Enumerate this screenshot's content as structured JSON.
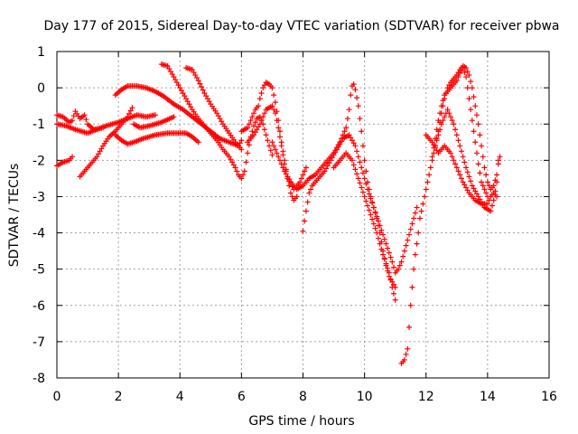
{
  "chart_data": {
    "type": "scatter",
    "title": "Day 177 of 2015, Sidereal Day-to-day VTEC variation (SDTVAR) for receiver pbwa",
    "xlabel": "GPS time / hours",
    "ylabel": "SDTVAR / TECUs",
    "xlim": [
      0,
      16
    ],
    "ylim": [
      -8,
      1
    ],
    "xticks": [
      "0",
      "2",
      "4",
      "6",
      "8",
      "10",
      "12",
      "14",
      "16"
    ],
    "yticks": [
      "1",
      "0",
      "-1",
      "-2",
      "-3",
      "-4",
      "-5",
      "-6",
      "-7",
      "-8"
    ],
    "grid": true,
    "marker": "+",
    "color": "#ff0000",
    "tracks": [
      [
        [
          0.0,
          -1.0
        ],
        [
          0.3,
          -1.05
        ],
        [
          0.6,
          -1.15
        ],
        [
          1.0,
          -1.25
        ],
        [
          1.3,
          -1.15
        ],
        [
          1.6,
          -1.05
        ],
        [
          2.0,
          -0.95
        ],
        [
          2.3,
          -0.85
        ],
        [
          2.6,
          -0.75
        ],
        [
          2.9,
          -0.8
        ],
        [
          3.2,
          -0.75
        ]
      ],
      [
        [
          0.0,
          -0.75
        ],
        [
          0.2,
          -0.8
        ],
        [
          0.4,
          -0.95
        ],
        [
          0.5,
          -0.9
        ],
        [
          0.6,
          -0.65
        ],
        [
          0.75,
          -0.85
        ],
        [
          0.9,
          -0.75
        ],
        [
          1.0,
          -1.0
        ],
        [
          1.2,
          -1.15
        ],
        [
          1.5,
          -1.1
        ]
      ],
      [
        [
          0.0,
          -2.15
        ],
        [
          0.2,
          -2.05
        ],
        [
          0.4,
          -2.0
        ],
        [
          0.5,
          -1.9
        ]
      ],
      [
        [
          0.75,
          -2.45
        ],
        [
          0.9,
          -2.3
        ],
        [
          1.1,
          -2.1
        ],
        [
          1.3,
          -1.9
        ],
        [
          1.5,
          -1.6
        ],
        [
          1.7,
          -1.35
        ],
        [
          1.9,
          -1.2
        ],
        [
          2.1,
          -1.0
        ],
        [
          2.3,
          -0.8
        ],
        [
          2.45,
          -0.55
        ],
        [
          2.5,
          -1.0
        ],
        [
          2.7,
          -1.1
        ],
        [
          3.0,
          -1.05
        ],
        [
          3.4,
          -0.95
        ],
        [
          3.8,
          -0.8
        ]
      ],
      [
        [
          1.9,
          -1.3
        ],
        [
          2.1,
          -1.45
        ],
        [
          2.3,
          -1.55
        ],
        [
          2.5,
          -1.5
        ],
        [
          2.8,
          -1.4
        ],
        [
          3.2,
          -1.3
        ],
        [
          3.6,
          -1.25
        ],
        [
          4.0,
          -1.25
        ],
        [
          4.2,
          -1.25
        ],
        [
          4.4,
          -1.35
        ],
        [
          4.6,
          -1.5
        ]
      ],
      [
        [
          1.9,
          -0.2
        ],
        [
          2.1,
          -0.05
        ],
        [
          2.3,
          0.05
        ],
        [
          2.6,
          0.05
        ],
        [
          2.9,
          0.0
        ],
        [
          3.2,
          -0.1
        ],
        [
          3.5,
          -0.25
        ],
        [
          3.8,
          -0.45
        ],
        [
          4.1,
          -0.6
        ],
        [
          4.4,
          -0.8
        ],
        [
          4.7,
          -1.0
        ],
        [
          5.0,
          -1.2
        ],
        [
          5.3,
          -1.4
        ],
        [
          5.6,
          -1.5
        ],
        [
          5.9,
          -1.6
        ],
        [
          6.0,
          -1.45
        ]
      ],
      [
        [
          3.4,
          0.65
        ],
        [
          3.6,
          0.6
        ],
        [
          3.8,
          0.3
        ],
        [
          4.0,
          0.0
        ],
        [
          4.2,
          -0.3
        ],
        [
          4.4,
          -0.6
        ],
        [
          4.6,
          -0.85
        ],
        [
          4.8,
          -1.05
        ],
        [
          5.0,
          -1.25
        ],
        [
          5.2,
          -1.45
        ],
        [
          5.4,
          -1.7
        ],
        [
          5.6,
          -1.9
        ],
        [
          5.8,
          -2.2
        ],
        [
          5.9,
          -2.4
        ],
        [
          6.0,
          -2.5
        ],
        [
          6.1,
          -2.3
        ],
        [
          6.2,
          -1.8
        ],
        [
          6.3,
          -1.35
        ],
        [
          6.4,
          -1.05
        ],
        [
          6.5,
          -0.85
        ],
        [
          6.6,
          -0.8
        ],
        [
          6.7,
          -1.0
        ],
        [
          6.8,
          -1.3
        ],
        [
          6.9,
          -1.6
        ],
        [
          7.0,
          -1.85
        ]
      ],
      [
        [
          4.2,
          0.55
        ],
        [
          4.4,
          0.5
        ],
        [
          4.6,
          0.2
        ],
        [
          4.8,
          -0.15
        ],
        [
          5.0,
          -0.45
        ],
        [
          5.2,
          -0.7
        ],
        [
          5.4,
          -1.0
        ],
        [
          5.6,
          -1.25
        ],
        [
          5.8,
          -1.5
        ],
        [
          6.0,
          -1.7
        ]
      ],
      [
        [
          6.0,
          -1.2
        ],
        [
          6.2,
          -1.1
        ],
        [
          6.35,
          -0.8
        ],
        [
          6.45,
          -0.6
        ],
        [
          6.55,
          -0.5
        ],
        [
          6.6,
          -0.3
        ],
        [
          6.7,
          0.0
        ],
        [
          6.8,
          0.15
        ],
        [
          6.9,
          0.1
        ],
        [
          7.0,
          0.0
        ],
        [
          7.1,
          -0.4
        ],
        [
          7.2,
          -0.9
        ],
        [
          7.3,
          -1.5
        ],
        [
          7.4,
          -2.0
        ],
        [
          7.5,
          -2.5
        ],
        [
          7.6,
          -2.9
        ],
        [
          7.7,
          -3.1
        ],
        [
          7.8,
          -3.0
        ]
      ],
      [
        [
          6.2,
          -1.5
        ],
        [
          6.4,
          -1.3
        ],
        [
          6.6,
          -1.0
        ],
        [
          6.8,
          -0.6
        ],
        [
          7.0,
          -0.5
        ],
        [
          7.1,
          -0.7
        ],
        [
          7.2,
          -1.1
        ],
        [
          7.3,
          -1.6
        ],
        [
          7.4,
          -2.1
        ],
        [
          7.5,
          -2.5
        ],
        [
          7.7,
          -2.8
        ],
        [
          7.9,
          -2.6
        ],
        [
          8.0,
          -2.4
        ],
        [
          8.1,
          -2.2
        ]
      ],
      [
        [
          7.0,
          -1.5
        ],
        [
          7.2,
          -1.9
        ],
        [
          7.4,
          -2.3
        ],
        [
          7.6,
          -2.6
        ],
        [
          7.8,
          -2.8
        ],
        [
          8.0,
          -2.7
        ],
        [
          8.2,
          -2.5
        ],
        [
          8.4,
          -2.4
        ],
        [
          8.6,
          -2.2
        ],
        [
          8.8,
          -2.0
        ],
        [
          9.0,
          -1.8
        ],
        [
          9.2,
          -1.5
        ],
        [
          9.4,
          -1.1
        ],
        [
          9.5,
          -0.6
        ],
        [
          9.55,
          -0.2
        ],
        [
          9.6,
          0.05
        ],
        [
          9.65,
          0.1
        ],
        [
          9.7,
          -0.05
        ],
        [
          9.8,
          -0.5
        ],
        [
          9.9,
          -1.2
        ],
        [
          10.0,
          -2.0
        ],
        [
          10.1,
          -2.6
        ],
        [
          10.2,
          -3.0
        ],
        [
          10.3,
          -3.3
        ],
        [
          10.4,
          -3.6
        ],
        [
          10.5,
          -4.0
        ],
        [
          10.6,
          -4.5
        ],
        [
          10.7,
          -4.9
        ],
        [
          10.8,
          -5.2
        ],
        [
          10.9,
          -5.35
        ],
        [
          11.0,
          -5.5
        ]
      ],
      [
        [
          8.0,
          -3.95
        ],
        [
          8.1,
          -3.4
        ],
        [
          8.2,
          -2.9
        ],
        [
          8.3,
          -2.7
        ],
        [
          8.5,
          -2.5
        ],
        [
          8.7,
          -2.3
        ],
        [
          8.9,
          -2.0
        ],
        [
          9.1,
          -1.7
        ],
        [
          9.3,
          -1.4
        ],
        [
          9.5,
          -1.3
        ],
        [
          9.7,
          -1.6
        ],
        [
          9.9,
          -2.2
        ],
        [
          10.1,
          -2.8
        ],
        [
          10.3,
          -3.3
        ],
        [
          10.5,
          -3.8
        ],
        [
          10.7,
          -4.3
        ],
        [
          10.9,
          -4.8
        ],
        [
          11.0,
          -5.1
        ],
        [
          11.1,
          -5.0
        ],
        [
          11.2,
          -4.8
        ],
        [
          11.3,
          -4.5
        ],
        [
          11.4,
          -4.2
        ],
        [
          11.5,
          -3.9
        ],
        [
          11.6,
          -3.6
        ],
        [
          11.7,
          -3.3
        ]
      ],
      [
        [
          9.0,
          -2.2
        ],
        [
          9.2,
          -2.0
        ],
        [
          9.4,
          -1.8
        ],
        [
          9.6,
          -2.0
        ],
        [
          9.8,
          -2.5
        ],
        [
          10.0,
          -3.0
        ],
        [
          10.2,
          -3.5
        ],
        [
          10.4,
          -4.0
        ],
        [
          10.6,
          -4.6
        ],
        [
          10.8,
          -5.1
        ],
        [
          10.9,
          -5.5
        ],
        [
          11.0,
          -5.85
        ]
      ],
      [
        [
          11.2,
          -7.6
        ],
        [
          11.3,
          -7.5
        ],
        [
          11.4,
          -7.2
        ],
        [
          11.45,
          -6.6
        ],
        [
          11.5,
          -6.0
        ],
        [
          11.55,
          -5.5
        ],
        [
          11.6,
          -5.0
        ],
        [
          11.65,
          -4.6
        ],
        [
          11.7,
          -4.3
        ],
        [
          11.75,
          -4.0
        ],
        [
          11.8,
          -3.6
        ],
        [
          11.9,
          -3.2
        ],
        [
          12.0,
          -2.8
        ],
        [
          12.1,
          -2.4
        ],
        [
          12.2,
          -2.0
        ],
        [
          12.3,
          -1.6
        ],
        [
          12.4,
          -1.2
        ],
        [
          12.5,
          -0.7
        ],
        [
          12.6,
          -0.3
        ],
        [
          12.7,
          0.0
        ],
        [
          12.8,
          0.15
        ],
        [
          12.9,
          0.25
        ],
        [
          13.0,
          0.35
        ],
        [
          13.1,
          0.5
        ],
        [
          13.2,
          0.6
        ],
        [
          13.3,
          0.55
        ],
        [
          13.4,
          0.35
        ],
        [
          13.5,
          0.0
        ],
        [
          13.6,
          -0.5
        ],
        [
          13.7,
          -1.0
        ],
        [
          13.8,
          -1.6
        ],
        [
          13.9,
          -2.2
        ],
        [
          14.0,
          -2.6
        ],
        [
          14.1,
          -2.8
        ],
        [
          14.2,
          -2.7
        ],
        [
          14.3,
          -2.4
        ],
        [
          14.35,
          -2.0
        ]
      ],
      [
        [
          12.0,
          -1.3
        ],
        [
          12.2,
          -1.5
        ],
        [
          12.4,
          -1.8
        ],
        [
          12.6,
          -1.6
        ],
        [
          12.8,
          -1.8
        ],
        [
          13.0,
          -2.2
        ],
        [
          13.2,
          -2.6
        ],
        [
          13.4,
          -2.9
        ],
        [
          13.6,
          -3.1
        ],
        [
          13.8,
          -3.2
        ],
        [
          14.0,
          -3.2
        ],
        [
          14.1,
          -3.0
        ],
        [
          14.2,
          -2.9
        ],
        [
          14.3,
          -3.0
        ]
      ],
      [
        [
          12.2,
          -1.9
        ],
        [
          12.3,
          -1.4
        ],
        [
          12.4,
          -0.9
        ],
        [
          12.5,
          -0.5
        ],
        [
          12.6,
          -0.2
        ],
        [
          12.8,
          0.0
        ],
        [
          13.0,
          0.2
        ],
        [
          13.1,
          0.4
        ],
        [
          13.2,
          0.55
        ],
        [
          13.3,
          0.3
        ],
        [
          13.4,
          -0.3
        ],
        [
          13.5,
          -0.9
        ],
        [
          13.6,
          -1.5
        ],
        [
          13.7,
          -2.1
        ],
        [
          13.8,
          -2.6
        ],
        [
          13.9,
          -2.8
        ],
        [
          14.0,
          -3.0
        ]
      ],
      [
        [
          12.3,
          -1.6
        ],
        [
          12.5,
          -1.0
        ],
        [
          12.7,
          -0.6
        ],
        [
          12.9,
          -1.0
        ],
        [
          13.1,
          -1.6
        ],
        [
          13.3,
          -2.2
        ],
        [
          13.5,
          -2.7
        ],
        [
          13.7,
          -3.0
        ],
        [
          13.9,
          -3.3
        ],
        [
          14.1,
          -3.4
        ],
        [
          14.2,
          -3.1
        ],
        [
          14.3,
          -2.6
        ],
        [
          14.35,
          -2.1
        ],
        [
          14.4,
          -1.9
        ]
      ]
    ]
  }
}
